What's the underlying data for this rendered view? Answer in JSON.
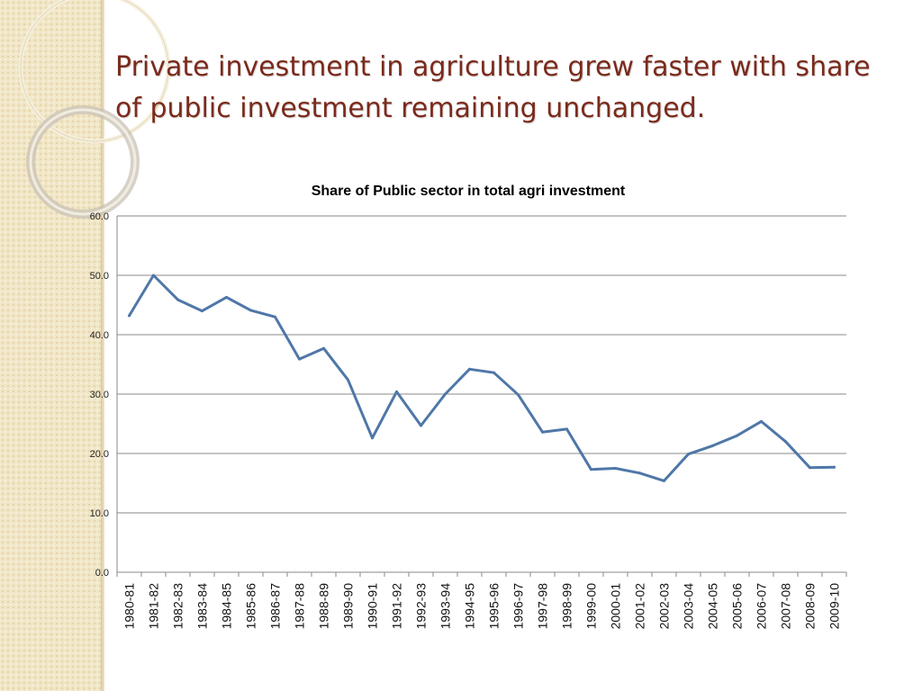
{
  "slide": {
    "title": "Private investment in agriculture grew faster with share of public investment remaining unchanged."
  },
  "chart_data": {
    "type": "line",
    "title": "Share of Public sector in total agri investment",
    "xlabel": "",
    "ylabel": "",
    "ylim": [
      0,
      60
    ],
    "yticks": [
      "0.0",
      "10.0",
      "20.0",
      "30.0",
      "40.0",
      "50.0",
      "60.0"
    ],
    "grid": true,
    "legend": "none",
    "line_color": "#4f77a8",
    "categories": [
      "1980-81",
      "1981-82",
      "1982-83",
      "1983-84",
      "1984-85",
      "1985-86",
      "1986-87",
      "1987-88",
      "1988-89",
      "1989-90",
      "1990-91",
      "1991-92",
      "1992-93",
      "1993-94",
      "1994-95",
      "1995-96",
      "1996-97",
      "1997-98",
      "1998-99",
      "1999-00",
      "2000-01",
      "2001-02",
      "2002-03",
      "2003-04",
      "2004-05",
      "2005-06",
      "2006-07",
      "2007-08",
      "2008-09",
      "2009-10"
    ],
    "series": [
      {
        "values": [
          43.2,
          50.0,
          45.9,
          44.0,
          46.3,
          44.1,
          43.0,
          35.9,
          37.7,
          32.4,
          22.6,
          30.4,
          24.7,
          30.0,
          34.2,
          33.6,
          29.9,
          23.6,
          24.1,
          17.3,
          17.5,
          16.7,
          15.4,
          19.9,
          21.3,
          23.0,
          25.4,
          22.0,
          17.6,
          17.7
        ]
      }
    ]
  }
}
